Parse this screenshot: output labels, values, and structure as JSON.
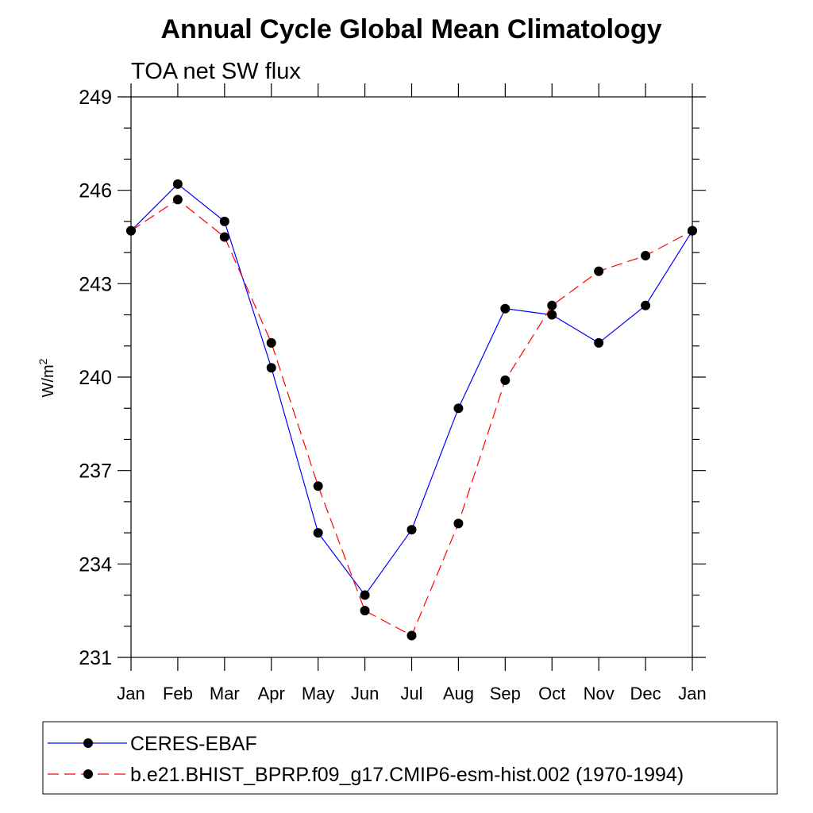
{
  "chart_data": {
    "type": "line",
    "title": "Annual Cycle Global Mean Climatology",
    "subtitle": "TOA net SW flux",
    "ylabel": "W/m",
    "ylabel_sup": "2",
    "categories": [
      "Jan",
      "Feb",
      "Mar",
      "Apr",
      "May",
      "Jun",
      "Jul",
      "Aug",
      "Sep",
      "Oct",
      "Nov",
      "Dec",
      "Jan"
    ],
    "ylim": [
      231,
      249
    ],
    "yticks": [
      231,
      234,
      237,
      240,
      243,
      246,
      249
    ],
    "ytick_labels": [
      "231",
      "234",
      "237",
      "240",
      "243",
      "246",
      "249"
    ],
    "grid": false,
    "legend_position": "bottom",
    "series": [
      {
        "name": "CERES-EBAF",
        "color": "#0000ff",
        "dashed": false,
        "values": [
          244.7,
          246.2,
          245.0,
          240.3,
          235.0,
          233.0,
          235.1,
          239.0,
          242.2,
          242.0,
          241.1,
          242.3,
          244.7
        ]
      },
      {
        "name": "b.e21.BHIST_BPRP.f09_g17.CMIP6-esm-hist.002 (1970-1994)",
        "color": "#ff0000",
        "dashed": true,
        "values": [
          244.7,
          245.7,
          244.5,
          241.1,
          236.5,
          232.5,
          231.7,
          235.3,
          239.9,
          242.3,
          243.4,
          243.9,
          244.7
        ]
      }
    ]
  }
}
